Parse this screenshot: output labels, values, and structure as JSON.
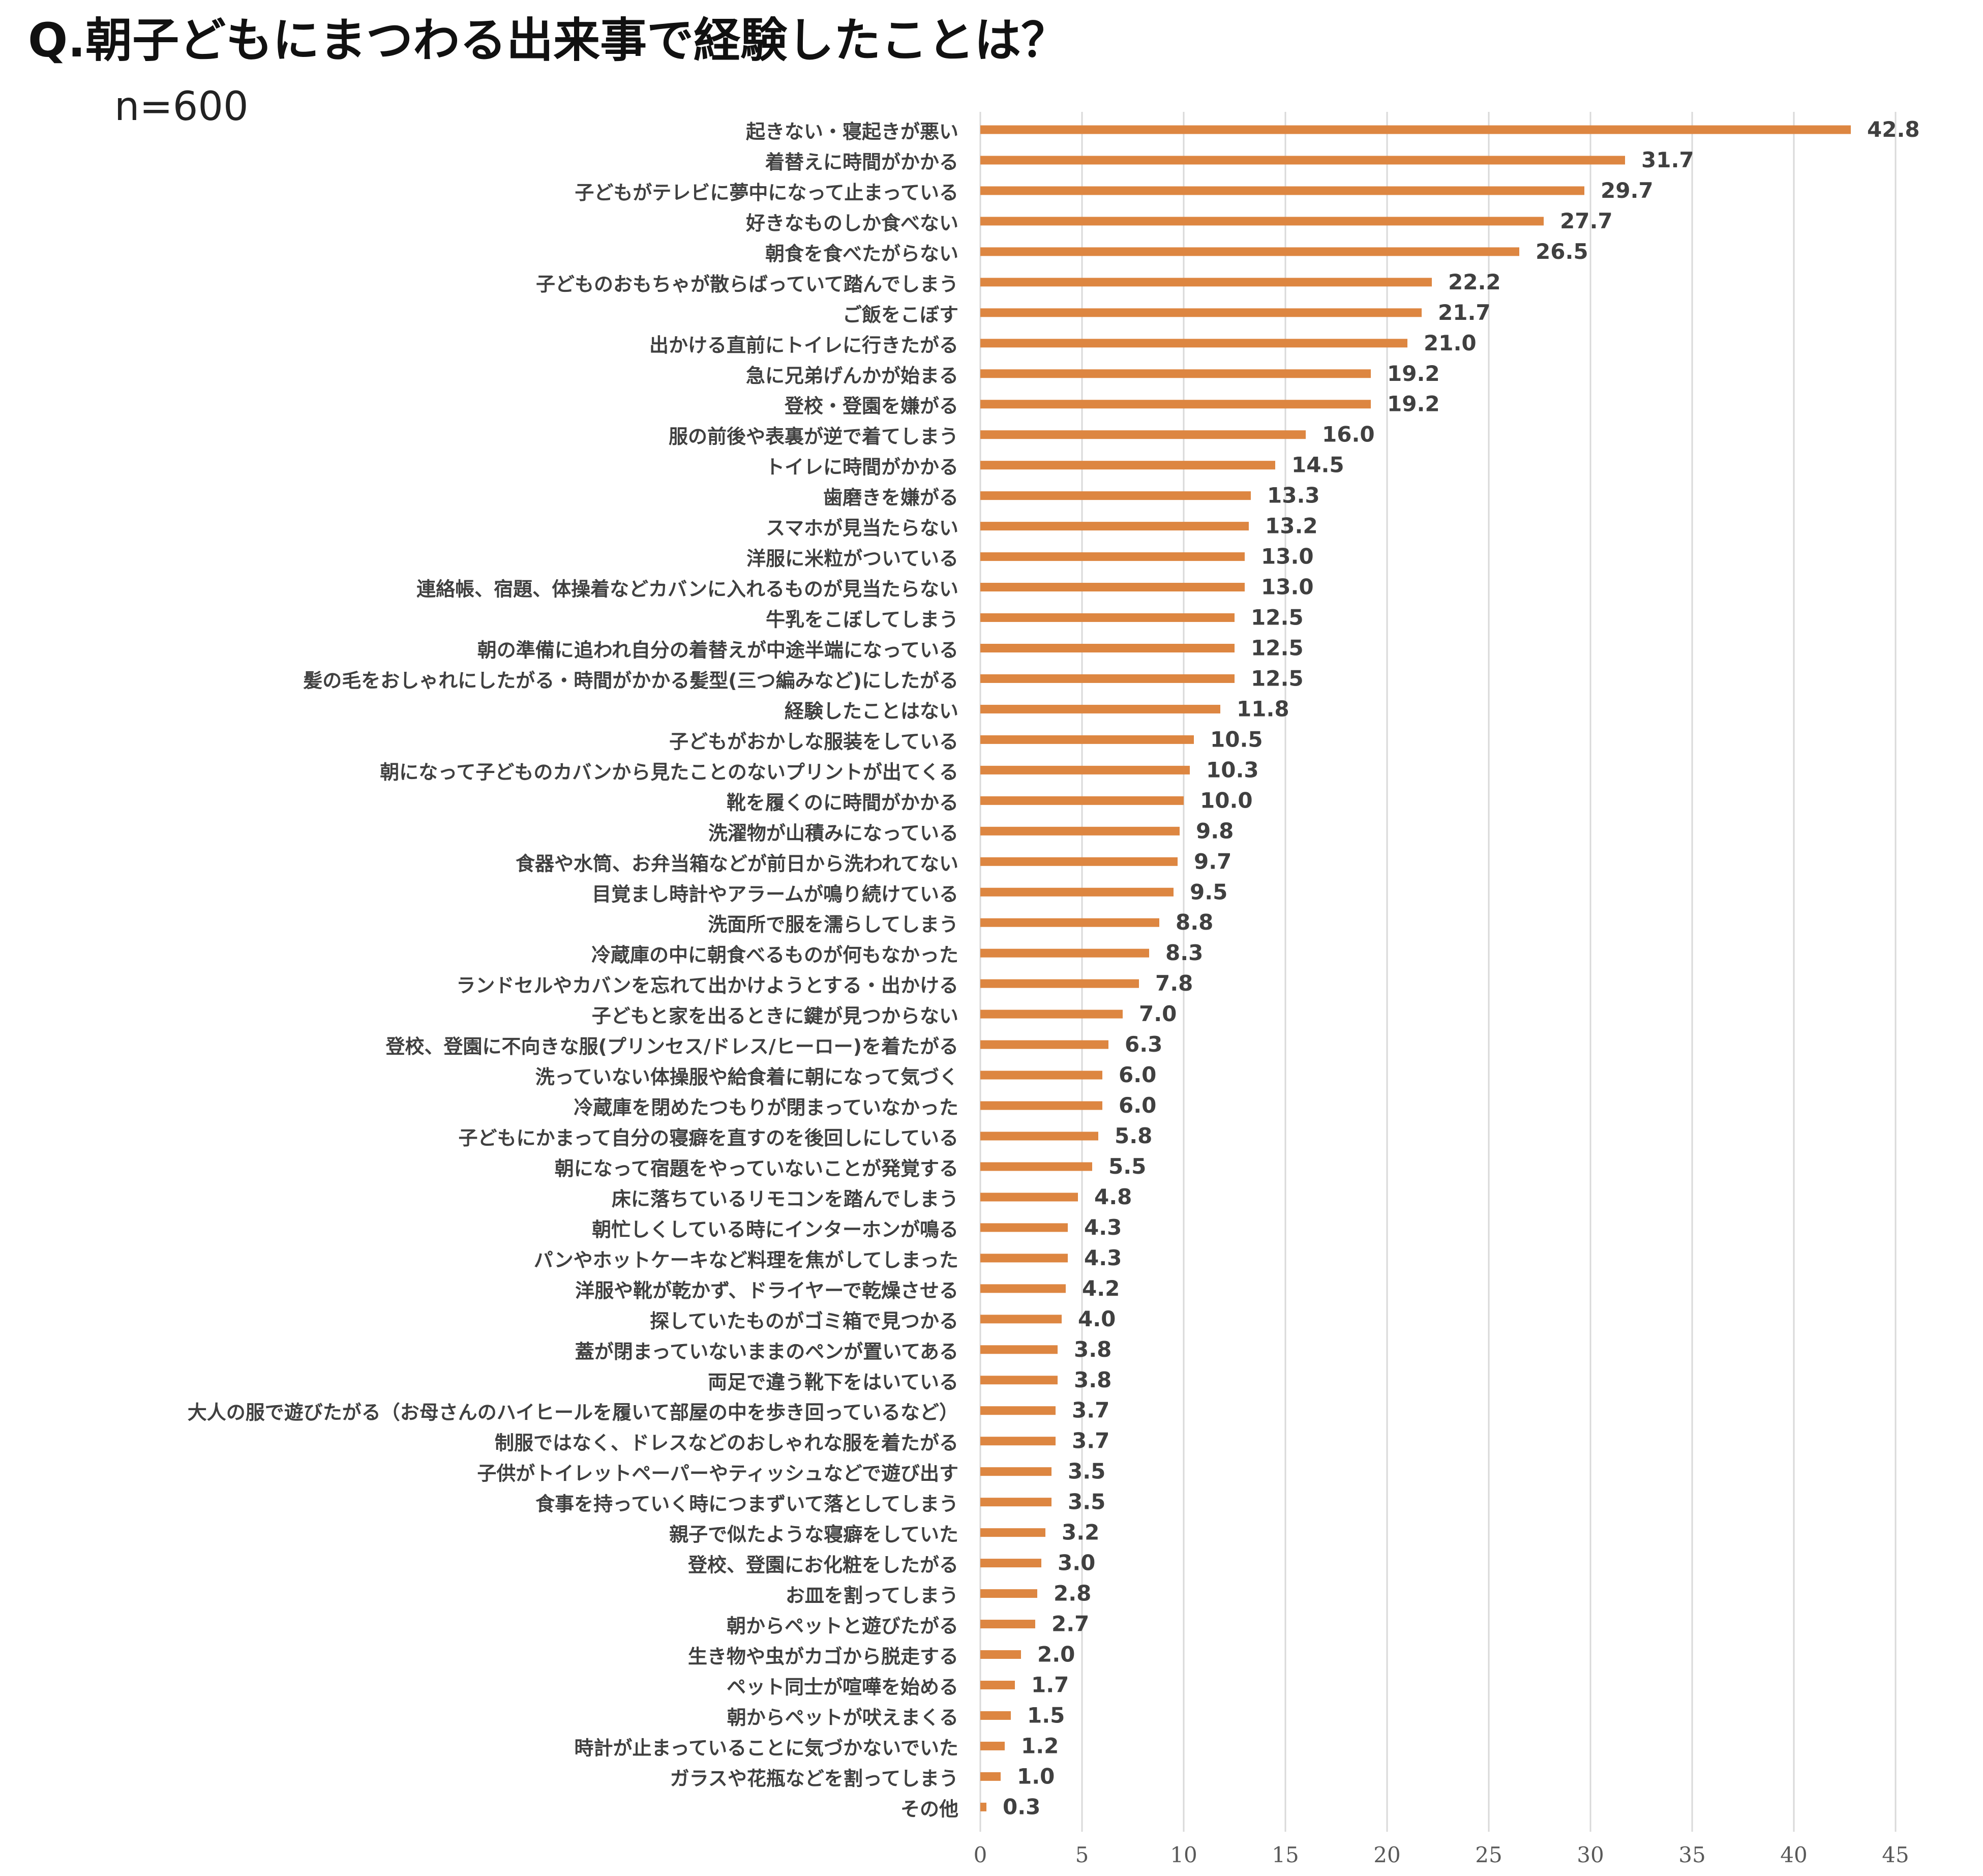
{
  "chart_data": {
    "type": "bar",
    "orientation": "horizontal",
    "title": "Q.朝子どもにまつわる出来事で経験したことは？",
    "subtitle": "n=600",
    "xlim": [
      0,
      45
    ],
    "xticks": [
      0,
      5,
      10,
      15,
      20,
      25,
      30,
      35,
      40,
      45
    ],
    "grid": true,
    "bar_color": "#dd8641",
    "categories": [
      "起きない・寝起きが悪い",
      "着替えに時間がかかる",
      "子どもがテレビに夢中になって止まっている",
      "好きなものしか食べない",
      "朝食を食べたがらない",
      "子どものおもちゃが散らばっていて踏んでしまう",
      "ご飯をこぼす",
      "出かける直前にトイレに行きたがる",
      "急に兄弟げんかが始まる",
      "登校・登園を嫌がる",
      "服の前後や表裏が逆で着てしまう",
      "トイレに時間がかかる",
      "歯磨きを嫌がる",
      "スマホが見当たらない",
      "洋服に米粒がついている",
      "連絡帳、宿題、体操着などカバンに入れるものが見当たらない",
      "牛乳をこぼしてしまう",
      "朝の準備に追われ自分の着替えが中途半端になっている",
      "髪の毛をおしゃれにしたがる・時間がかかる髪型(三つ編みなど)にしたがる",
      "経験したことはない",
      "子どもがおかしな服装をしている",
      "朝になって子どものカバンから見たことのないプリントが出てくる",
      "靴を履くのに時間がかかる",
      "洗濯物が山積みになっている",
      "食器や水筒、お弁当箱などが前日から洗われてない",
      "目覚まし時計やアラームが鳴り続けている",
      "洗面所で服を濡らしてしまう",
      "冷蔵庫の中に朝食べるものが何もなかった",
      "ランドセルやカバンを忘れて出かけようとする・出かける",
      "子どもと家を出るときに鍵が見つからない",
      "登校、登園に不向きな服(プリンセス/ドレス/ヒーロー)を着たがる",
      "洗っていない体操服や給食着に朝になって気づく",
      "冷蔵庫を閉めたつもりが閉まっていなかった",
      "子どもにかまって自分の寝癖を直すのを後回しにしている",
      "朝になって宿題をやっていないことが発覚する",
      "床に落ちているリモコンを踏んでしまう",
      "朝忙しくしている時にインターホンが鳴る",
      "パンやホットケーキなど料理を焦がしてしまった",
      "洋服や靴が乾かず、ドライヤーで乾燥させる",
      "探していたものがゴミ箱で見つかる",
      "蓋が閉まっていないままのペンが置いてある",
      "両足で違う靴下をはいている",
      "大人の服で遊びたがる（お母さんのハイヒールを履いて部屋の中を歩き回っているなど）",
      "制服ではなく、ドレスなどのおしゃれな服を着たがる",
      "子供がトイレットペーパーやティッシュなどで遊び出す",
      "食事を持っていく時につまずいて落としてしまう",
      "親子で似たような寝癖をしていた",
      "登校、登園にお化粧をしたがる",
      "お皿を割ってしまう",
      "朝からペットと遊びたがる",
      "生き物や虫がカゴから脱走する",
      "ペット同士が喧嘩を始める",
      "朝からペットが吠えまくる",
      "時計が止まっていることに気づかないでいた",
      "ガラスや花瓶などを割ってしまう",
      "その他"
    ],
    "values": [
      42.8,
      31.7,
      29.7,
      27.7,
      26.5,
      22.2,
      21.7,
      21.0,
      19.2,
      19.2,
      16.0,
      14.5,
      13.3,
      13.2,
      13.0,
      13.0,
      12.5,
      12.5,
      12.5,
      11.8,
      10.5,
      10.3,
      10.0,
      9.8,
      9.7,
      9.5,
      8.8,
      8.3,
      7.8,
      7.0,
      6.3,
      6.0,
      6.0,
      5.8,
      5.5,
      4.8,
      4.3,
      4.3,
      4.2,
      4.0,
      3.8,
      3.8,
      3.7,
      3.7,
      3.5,
      3.5,
      3.2,
      3.0,
      2.8,
      2.7,
      2.0,
      1.7,
      1.5,
      1.2,
      1.0,
      0.3
    ]
  }
}
